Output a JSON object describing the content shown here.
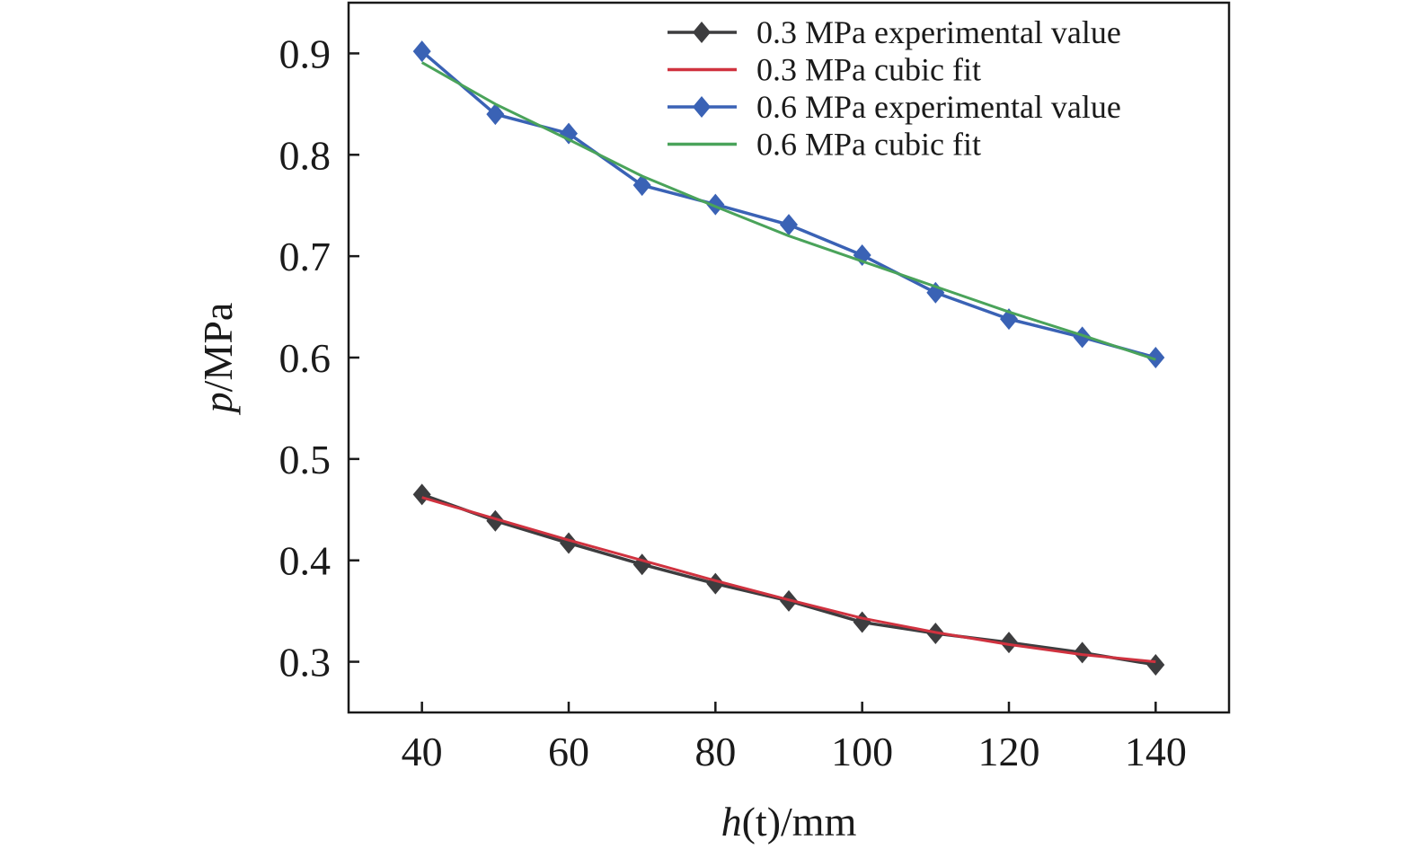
{
  "chart_data": {
    "type": "line",
    "title": "",
    "xlabel_italic": "h",
    "xlabel_paren": "(t)",
    "xlabel_unit": "/mm",
    "ylabel_italic": "p",
    "ylabel_unit": "/MPa",
    "xlim": [
      30,
      150
    ],
    "ylim": [
      0.25,
      0.95
    ],
    "xticks": [
      40,
      60,
      80,
      100,
      120,
      140
    ],
    "xtick_labels": [
      "40",
      "60",
      "80",
      "100",
      "120",
      "140"
    ],
    "yticks": [
      0.3,
      0.4,
      0.5,
      0.6,
      0.7,
      0.8,
      0.9
    ],
    "ytick_labels": [
      "0.3",
      "0.4",
      "0.5",
      "0.6",
      "0.7",
      "0.8",
      "0.9"
    ],
    "grid": false,
    "legend_position": "top-right",
    "x": [
      40,
      50,
      60,
      70,
      80,
      90,
      100,
      110,
      120,
      130,
      140
    ],
    "series": [
      {
        "name": "0.3 MPa experimental value",
        "color": "#3d3d3f",
        "marker": "diamond",
        "values": [
          0.465,
          0.439,
          0.417,
          0.396,
          0.377,
          0.36,
          0.339,
          0.328,
          0.319,
          0.309,
          0.297
        ]
      },
      {
        "name": "0.3 MPa cubic fit",
        "color": "#d0323f",
        "marker": "none",
        "values": [
          0.462,
          0.441,
          0.42,
          0.4,
          0.38,
          0.361,
          0.343,
          0.329,
          0.317,
          0.307,
          0.3
        ]
      },
      {
        "name": "0.6 MPa experimental value",
        "color": "#3a62b5",
        "marker": "diamond",
        "values": [
          0.902,
          0.84,
          0.821,
          0.77,
          0.751,
          0.731,
          0.701,
          0.664,
          0.638,
          0.62,
          0.6
        ]
      },
      {
        "name": "0.6 MPa cubic fit",
        "color": "#4aa35a",
        "marker": "none",
        "values": [
          0.891,
          0.85,
          0.815,
          0.779,
          0.749,
          0.72,
          0.695,
          0.67,
          0.645,
          0.622,
          0.598
        ]
      }
    ]
  }
}
